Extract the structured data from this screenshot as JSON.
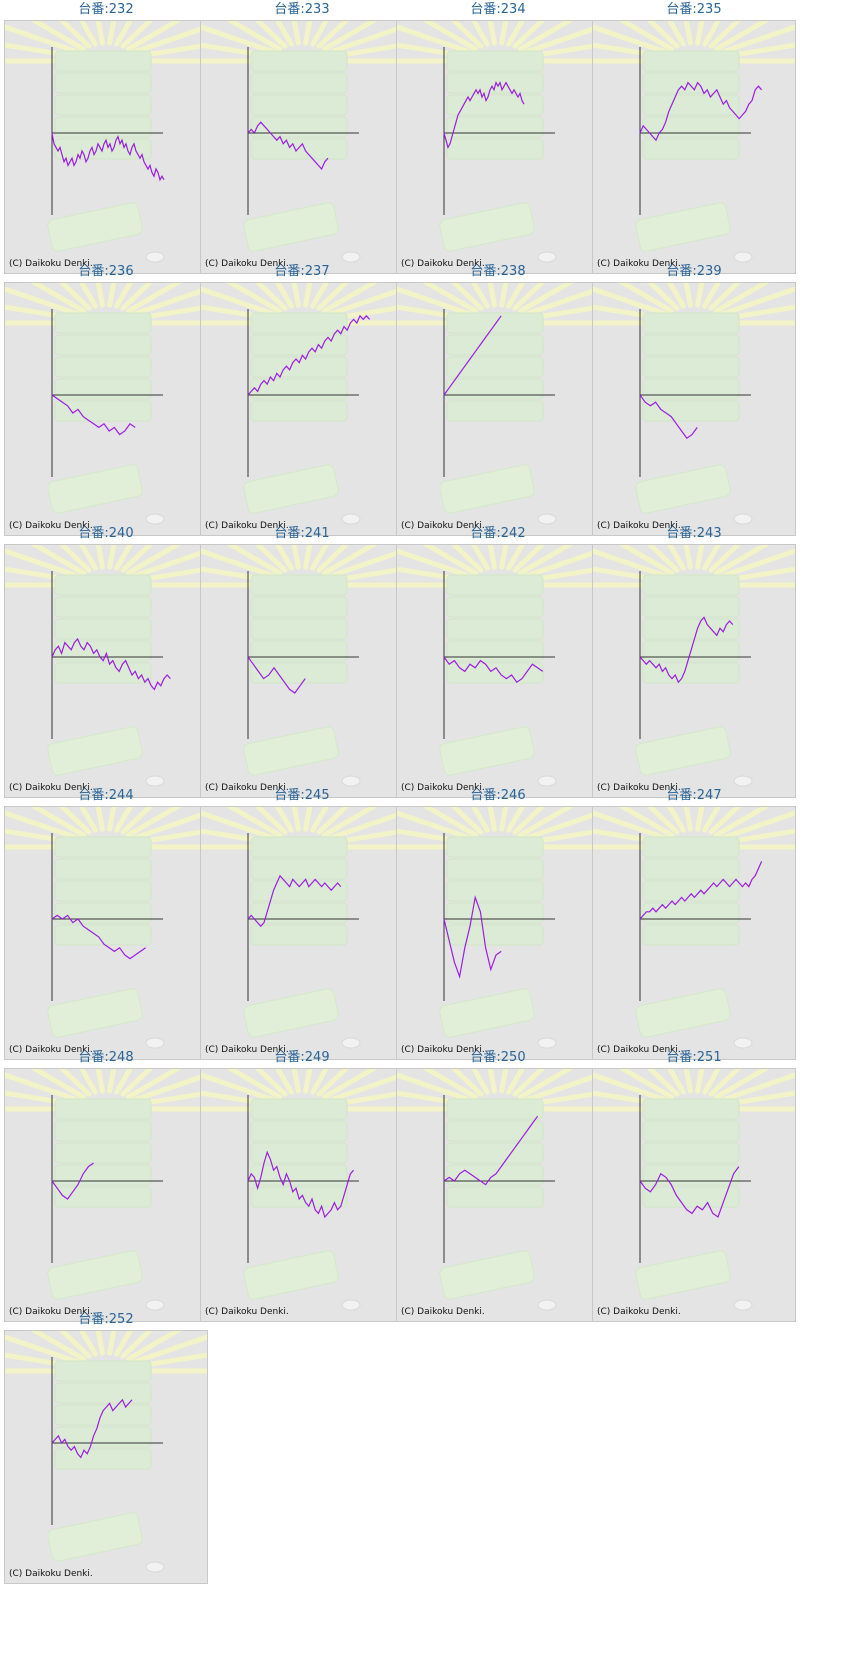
{
  "page": {
    "copyright": "(C) Daikoku Denki."
  },
  "chart_data": [
    {
      "type": "line",
      "title": "台番:232",
      "values": [
        0,
        -3,
        -4,
        -5,
        -4,
        -6,
        -8,
        -7,
        -9,
        -8,
        -7,
        -9,
        -8,
        -6,
        -7,
        -5,
        -6,
        -8,
        -7,
        -5,
        -4,
        -6,
        -5,
        -3,
        -4,
        -5,
        -3,
        -2,
        -4,
        -3,
        -5,
        -4,
        -2,
        -1,
        -3,
        -2,
        -4,
        -3,
        -5,
        -6,
        -4,
        -3,
        -5,
        -6,
        -7,
        -6,
        -8,
        -9,
        -10,
        -9,
        -11,
        -12,
        -10,
        -11,
        -13,
        -12,
        -13
      ]
    },
    {
      "type": "line",
      "title": "台番:233",
      "values": [
        0,
        1,
        0,
        2,
        3,
        2,
        1,
        0,
        -1,
        -2,
        -1,
        -3,
        -2,
        -4,
        -3,
        -5,
        -4,
        -3,
        -5,
        -6,
        -7,
        -8,
        -9,
        -10,
        -8,
        -7
      ]
    },
    {
      "type": "line",
      "title": "台番:234",
      "values": [
        0,
        -2,
        -4,
        -3,
        -1,
        1,
        3,
        5,
        6,
        7,
        8,
        9,
        10,
        9,
        10,
        11,
        12,
        11,
        12,
        10,
        11,
        9,
        10,
        12,
        13,
        12,
        14,
        13,
        14,
        12,
        13,
        14,
        13,
        12,
        11,
        12,
        11,
        10,
        11,
        9,
        8
      ]
    },
    {
      "type": "line",
      "title": "台番:235",
      "values": [
        0,
        2,
        1,
        0,
        -1,
        -2,
        0,
        1,
        3,
        6,
        8,
        10,
        12,
        13,
        12,
        14,
        13,
        12,
        14,
        13,
        11,
        12,
        10,
        11,
        12,
        10,
        8,
        9,
        7,
        6,
        5,
        4,
        5,
        6,
        8,
        9,
        12,
        13,
        12
      ]
    },
    {
      "type": "line",
      "title": "台番:236",
      "values": [
        0,
        -1,
        -2,
        -3,
        -5,
        -4,
        -6,
        -7,
        -8,
        -9,
        -8,
        -10,
        -9,
        -11,
        -10,
        -8,
        -9
      ]
    },
    {
      "type": "line",
      "title": "台番:237",
      "values": [
        0,
        1,
        2,
        1,
        3,
        4,
        3,
        5,
        4,
        6,
        5,
        7,
        8,
        7,
        9,
        10,
        9,
        11,
        10,
        12,
        13,
        12,
        14,
        13,
        15,
        16,
        15,
        17,
        18,
        17,
        19,
        18,
        20,
        21,
        20,
        22,
        21,
        22,
        21
      ]
    },
    {
      "type": "line",
      "title": "台番:238",
      "values": [
        0,
        2,
        4,
        6,
        8,
        10,
        12,
        14,
        16,
        18,
        20,
        22
      ]
    },
    {
      "type": "line",
      "title": "台番:239",
      "values": [
        0,
        -2,
        -3,
        -2,
        -4,
        -5,
        -6,
        -8,
        -10,
        -12,
        -11,
        -9
      ]
    },
    {
      "type": "line",
      "title": "台番:240",
      "values": [
        0,
        2,
        3,
        1,
        4,
        3,
        2,
        4,
        5,
        3,
        2,
        4,
        3,
        1,
        2,
        0,
        -1,
        1,
        -2,
        -1,
        -3,
        -4,
        -2,
        -1,
        -3,
        -5,
        -4,
        -6,
        -5,
        -7,
        -6,
        -8,
        -9,
        -7,
        -8,
        -6,
        -5,
        -6
      ]
    },
    {
      "type": "line",
      "title": "台番:241",
      "values": [
        0,
        -2,
        -4,
        -6,
        -5,
        -3,
        -5,
        -7,
        -9,
        -10,
        -8,
        -6
      ]
    },
    {
      "type": "line",
      "title": "台番:242",
      "values": [
        0,
        -2,
        -1,
        -3,
        -4,
        -2,
        -3,
        -1,
        -2,
        -4,
        -3,
        -5,
        -6,
        -5,
        -7,
        -6,
        -4,
        -2,
        -3,
        -4
      ]
    },
    {
      "type": "line",
      "title": "台番:243",
      "values": [
        0,
        -1,
        -2,
        -1,
        -2,
        -3,
        -2,
        -4,
        -3,
        -5,
        -6,
        -5,
        -7,
        -6,
        -4,
        -1,
        2,
        5,
        8,
        10,
        11,
        9,
        8,
        7,
        6,
        8,
        7,
        9,
        10,
        9
      ]
    },
    {
      "type": "line",
      "title": "台番:244",
      "values": [
        0,
        1,
        0,
        1,
        -1,
        0,
        -2,
        -3,
        -4,
        -5,
        -7,
        -8,
        -9,
        -8,
        -10,
        -11,
        -10,
        -9,
        -8
      ]
    },
    {
      "type": "line",
      "title": "台番:245",
      "values": [
        0,
        1,
        0,
        -1,
        -2,
        -1,
        2,
        5,
        8,
        10,
        12,
        11,
        10,
        9,
        11,
        10,
        9,
        10,
        11,
        9,
        10,
        11,
        10,
        9,
        10,
        9,
        8,
        9,
        10,
        9
      ]
    },
    {
      "type": "line",
      "title": "台番:246",
      "values": [
        0,
        -6,
        -12,
        -16,
        -8,
        -2,
        6,
        2,
        -8,
        -14,
        -10,
        -9
      ]
    },
    {
      "type": "line",
      "title": "台番:247",
      "values": [
        0,
        1,
        2,
        2,
        3,
        2,
        3,
        4,
        3,
        4,
        5,
        4,
        5,
        6,
        5,
        6,
        7,
        6,
        7,
        8,
        7,
        8,
        9,
        10,
        9,
        10,
        11,
        10,
        9,
        10,
        11,
        10,
        9,
        10,
        9,
        11,
        12,
        14,
        16
      ]
    },
    {
      "type": "line",
      "title": "台番:248",
      "values": [
        0,
        -2,
        -4,
        -5,
        -3,
        -1,
        2,
        4,
        5
      ]
    },
    {
      "type": "line",
      "title": "台番:249",
      "values": [
        0,
        2,
        1,
        -2,
        1,
        5,
        8,
        6,
        3,
        4,
        1,
        -1,
        2,
        0,
        -3,
        -2,
        -5,
        -4,
        -6,
        -7,
        -5,
        -8,
        -9,
        -7,
        -10,
        -9,
        -8,
        -6,
        -8,
        -7,
        -4,
        -1,
        2,
        3
      ]
    },
    {
      "type": "line",
      "title": "台番:250",
      "values": [
        0,
        1,
        0,
        2,
        3,
        2,
        1,
        0,
        -1,
        1,
        2,
        4,
        6,
        8,
        10,
        12,
        14,
        16,
        18
      ]
    },
    {
      "type": "line",
      "title": "台番:251",
      "values": [
        0,
        -2,
        -3,
        -1,
        2,
        1,
        -1,
        -4,
        -6,
        -8,
        -9,
        -7,
        -8,
        -6,
        -9,
        -10,
        -6,
        -2,
        2,
        4
      ]
    },
    {
      "type": "line",
      "title": "台番:252",
      "values": [
        0,
        1,
        2,
        0,
        1,
        -1,
        -2,
        -1,
        -3,
        -4,
        -2,
        -3,
        -1,
        2,
        4,
        7,
        9,
        10,
        11,
        9,
        10,
        11,
        12,
        10,
        11,
        12
      ]
    }
  ]
}
